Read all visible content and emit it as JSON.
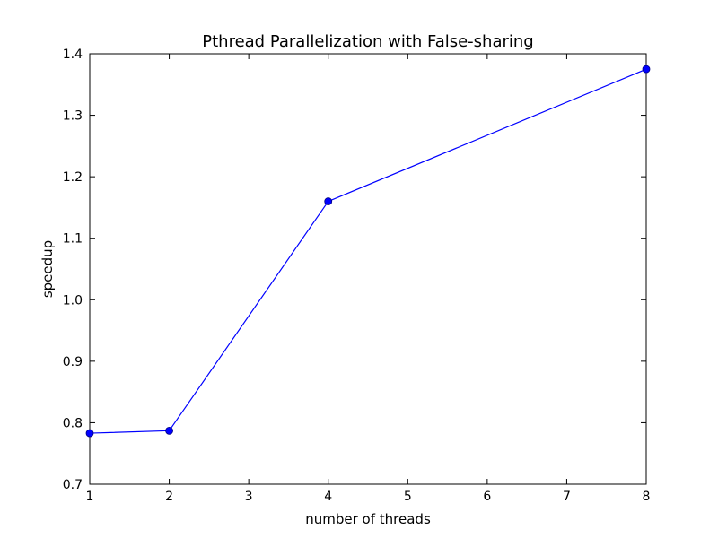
{
  "chart_data": {
    "type": "line",
    "title": "Pthread Parallelization with False-sharing",
    "xlabel": "number of threads",
    "ylabel": "speedup",
    "xlim": [
      1,
      8
    ],
    "ylim": [
      0.7,
      1.4
    ],
    "xticks": [
      1,
      2,
      3,
      4,
      5,
      6,
      7,
      8
    ],
    "yticks": [
      0.7,
      0.8,
      0.9,
      1.0,
      1.1,
      1.2,
      1.3,
      1.4
    ],
    "xtick_labels": [
      "1",
      "2",
      "3",
      "4",
      "5",
      "6",
      "7",
      "8"
    ],
    "ytick_labels": [
      "0.7",
      "0.8",
      "0.9",
      "1.0",
      "1.1",
      "1.2",
      "1.3",
      "1.4"
    ],
    "grid": false,
    "series": [
      {
        "x": [
          1,
          2,
          4,
          8
        ],
        "y": [
          0.783,
          0.787,
          1.16,
          1.375
        ],
        "color": "#0000ff",
        "marker": "circle"
      }
    ]
  }
}
